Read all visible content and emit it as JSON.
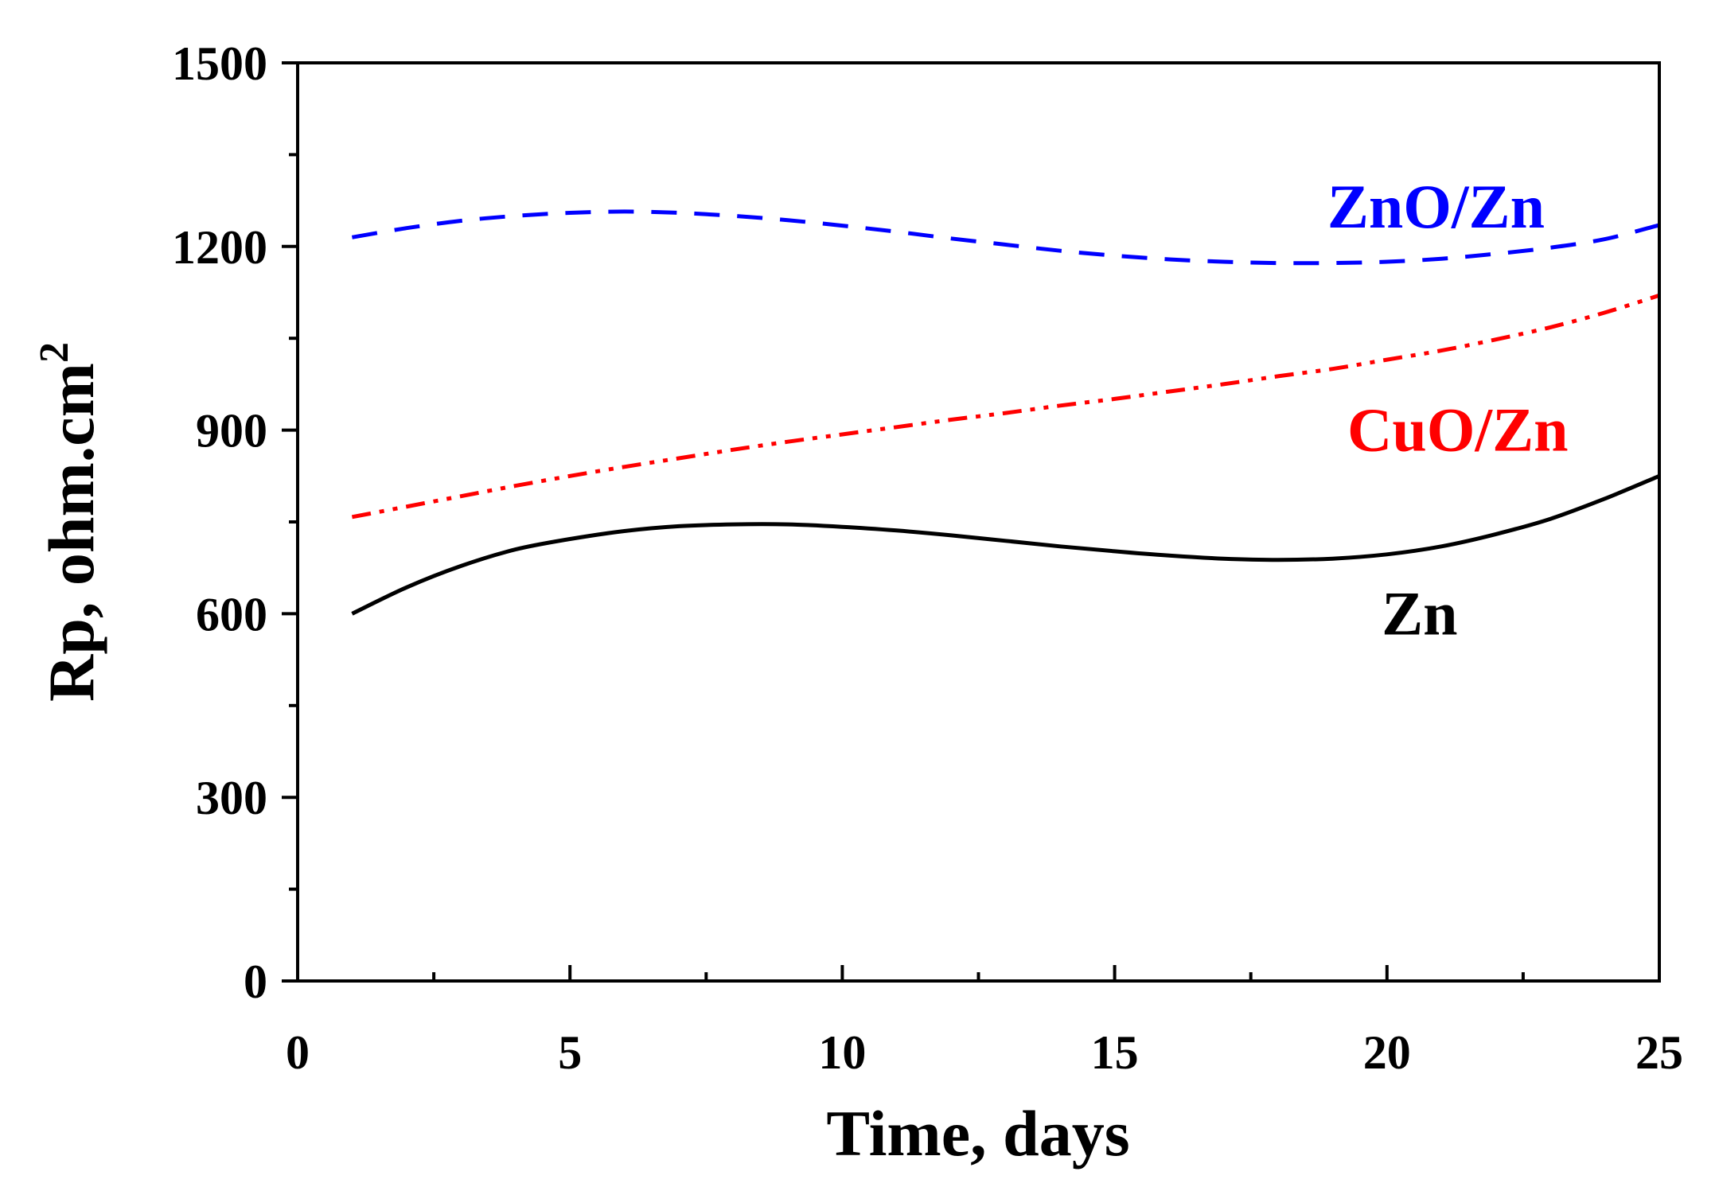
{
  "chart_data": {
    "type": "line",
    "title": "",
    "xlabel": "Time, days",
    "ylabel": "Rp, ohm.cm",
    "ylabel_superscript": "2",
    "xlim": [
      0,
      25
    ],
    "ylim": [
      0,
      1500
    ],
    "xticks": [
      0,
      5,
      10,
      15,
      20,
      25
    ],
    "yticks": [
      0,
      300,
      600,
      900,
      1200,
      1500
    ],
    "x_minor_step": 2.5,
    "y_minor_step": 150,
    "grid": false,
    "legend": "inline labels",
    "series": [
      {
        "name": "ZnO/Zn",
        "color": "#0000ff",
        "style": "dash",
        "label_color": "#0000ff",
        "x": [
          1,
          2,
          3,
          4,
          5,
          6,
          7,
          8,
          9,
          10,
          11,
          12,
          13,
          14,
          15,
          16,
          17,
          18,
          19,
          20,
          21,
          22,
          23,
          24,
          25
        ],
        "values": [
          1215,
          1230,
          1242,
          1250,
          1255,
          1257,
          1255,
          1250,
          1243,
          1234,
          1224,
          1213,
          1203,
          1193,
          1185,
          1179,
          1175,
          1173,
          1173,
          1175,
          1180,
          1188,
          1198,
          1212,
          1235
        ]
      },
      {
        "name": "CuO/Zn",
        "color": "#ff0000",
        "style": "dashdotdot",
        "label_color": "#ff0000",
        "x": [
          1,
          2,
          3,
          4,
          5,
          6,
          7,
          8,
          9,
          10,
          11,
          12,
          13,
          14,
          15,
          16,
          17,
          18,
          19,
          20,
          21,
          22,
          23,
          24,
          25
        ],
        "values": [
          758,
          775,
          792,
          809,
          825,
          840,
          854,
          868,
          881,
          893,
          905,
          917,
          928,
          940,
          951,
          963,
          975,
          988,
          1000,
          1015,
          1030,
          1048,
          1068,
          1092,
          1120
        ]
      },
      {
        "name": "Zn",
        "color": "#000000",
        "style": "solid",
        "label_color": "#000000",
        "x": [
          1,
          2,
          3,
          4,
          5,
          6,
          7,
          8,
          9,
          10,
          11,
          12,
          13,
          14,
          15,
          16,
          17,
          18,
          19,
          20,
          21,
          22,
          23,
          24,
          25
        ],
        "values": [
          600,
          643,
          678,
          705,
          722,
          735,
          743,
          746,
          746,
          742,
          736,
          728,
          719,
          710,
          702,
          695,
          690,
          688,
          690,
          697,
          710,
          730,
          755,
          788,
          825
        ]
      }
    ],
    "annotations": [
      {
        "text": "ZnO/Zn",
        "x": 20.9,
        "y": 1265,
        "color": "#0000ff"
      },
      {
        "text": "CuO/Zn",
        "x": 21.3,
        "y": 900,
        "color": "#ff0000"
      },
      {
        "text": "Zn",
        "x": 20.6,
        "y": 600,
        "color": "#000000"
      }
    ]
  }
}
